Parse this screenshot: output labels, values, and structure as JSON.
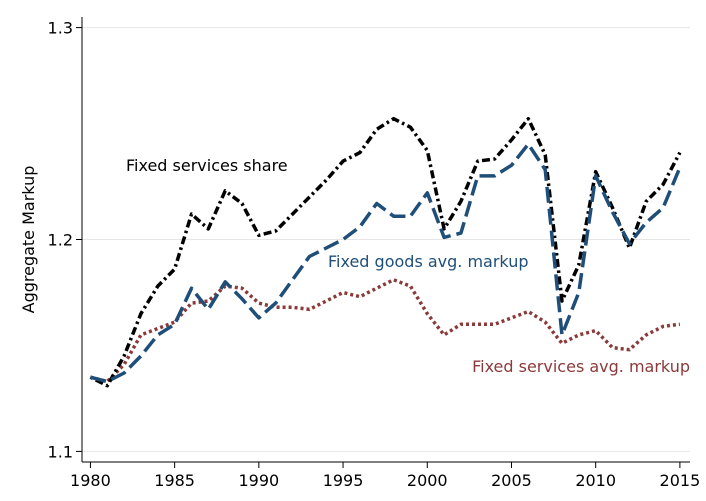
{
  "chart_data": {
    "type": "line",
    "title": "",
    "xlabel": "",
    "ylabel": "Aggregate Markup",
    "xlim": [
      1979.5,
      2015.6
    ],
    "ylim": [
      1.095,
      1.305
    ],
    "x_ticks": [
      1980,
      1985,
      1990,
      1995,
      2000,
      2005,
      2010,
      2015
    ],
    "y_ticks": [
      1.1,
      1.2,
      1.3
    ],
    "y_tick_labels": [
      "1.1",
      "1.2",
      "1.3"
    ],
    "grid": "horizontal",
    "legend": "none (inline labels)",
    "x": [
      1980,
      1981,
      1982,
      1983,
      1984,
      1985,
      1986,
      1987,
      1988,
      1989,
      1990,
      1991,
      1992,
      1993,
      1994,
      1995,
      1996,
      1997,
      1998,
      1999,
      2000,
      2001,
      2002,
      2003,
      2004,
      2005,
      2006,
      2007,
      2008,
      2009,
      2010,
      2011,
      2012,
      2013,
      2014,
      2015
    ],
    "series": [
      {
        "label": "Fixed services share",
        "color": "#000000",
        "style": "dashdot",
        "values": [
          1.135,
          1.131,
          1.145,
          1.165,
          1.178,
          1.186,
          1.212,
          1.205,
          1.223,
          1.217,
          1.202,
          1.204,
          1.212,
          1.22,
          1.228,
          1.237,
          1.241,
          1.252,
          1.257,
          1.253,
          1.242,
          1.205,
          1.218,
          1.237,
          1.238,
          1.247,
          1.257,
          1.24,
          1.171,
          1.188,
          1.232,
          1.215,
          1.196,
          1.218,
          1.226,
          1.241
        ]
      },
      {
        "label": "Fixed goods avg. markup",
        "color": "#1f4e79",
        "style": "longdash",
        "values": [
          1.135,
          1.133,
          1.137,
          1.145,
          1.155,
          1.16,
          1.177,
          1.167,
          1.18,
          1.172,
          1.163,
          1.17,
          1.181,
          1.192,
          1.196,
          1.2,
          1.206,
          1.217,
          1.211,
          1.211,
          1.222,
          1.201,
          1.203,
          1.23,
          1.23,
          1.235,
          1.245,
          1.233,
          1.155,
          1.175,
          1.23,
          1.213,
          1.198,
          1.208,
          1.215,
          1.234
        ]
      },
      {
        "label": "Fixed services avg. markup",
        "color": "#8b3a3a",
        "style": "dotted",
        "values": [
          1.135,
          1.133,
          1.141,
          1.155,
          1.158,
          1.161,
          1.17,
          1.171,
          1.178,
          1.177,
          1.17,
          1.168,
          1.168,
          1.167,
          1.171,
          1.175,
          1.173,
          1.177,
          1.181,
          1.178,
          1.165,
          1.155,
          1.16,
          1.16,
          1.16,
          1.163,
          1.166,
          1.161,
          1.151,
          1.155,
          1.157,
          1.149,
          1.148,
          1.155,
          1.159,
          1.16
        ]
      }
    ]
  }
}
